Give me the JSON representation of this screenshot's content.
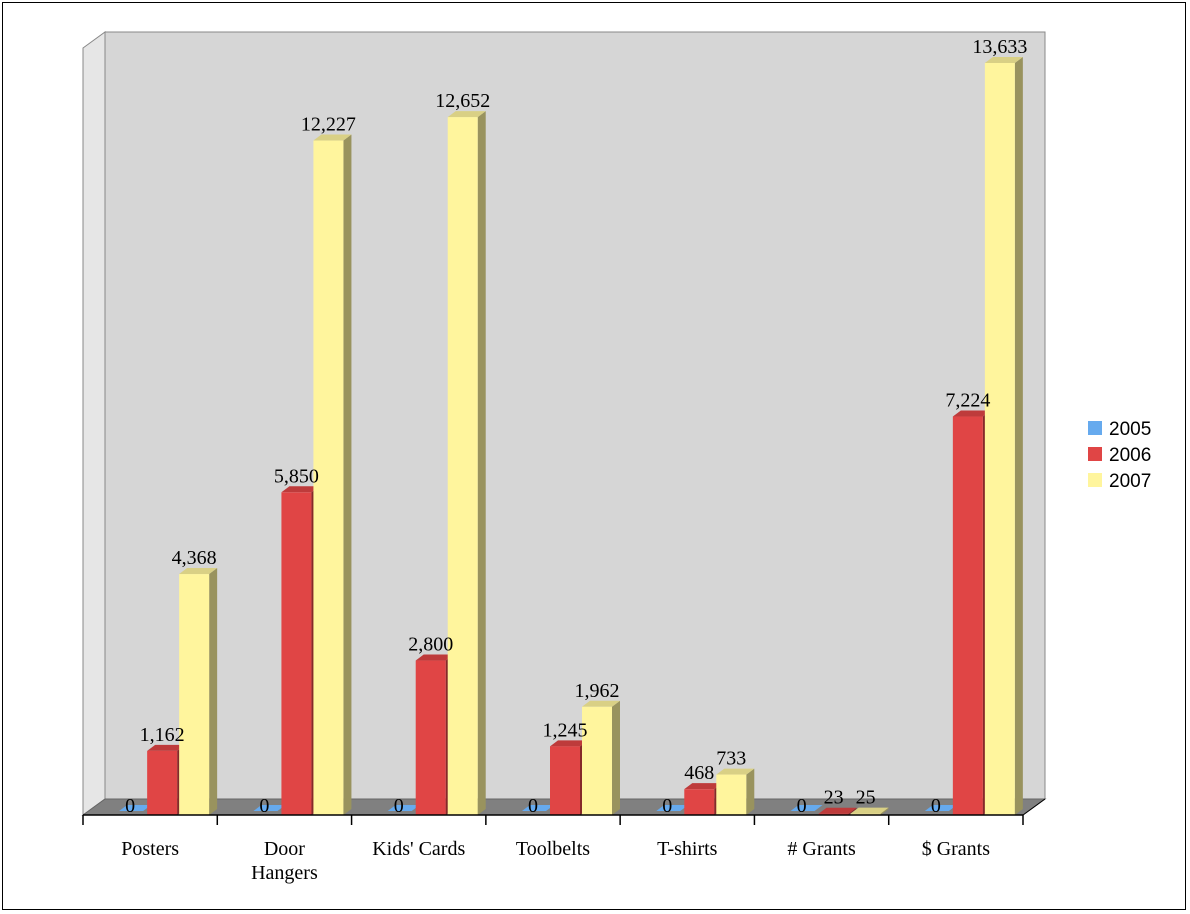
{
  "chart_data": {
    "type": "bar",
    "categories": [
      "Posters",
      "Door\nHangers",
      "Kids' Cards",
      "Toolbelts",
      "T-shirts",
      "# Grants",
      "$ Grants"
    ],
    "series": [
      {
        "name": "2005",
        "values": [
          0,
          0,
          0,
          0,
          0,
          0,
          0
        ],
        "labels": [
          "0",
          "0",
          "0",
          "0",
          "0",
          "0",
          "0"
        ]
      },
      {
        "name": "2006",
        "values": [
          1162,
          5850,
          2800,
          1245,
          468,
          23,
          7224
        ],
        "labels": [
          "1,162",
          "5,850",
          "2,800",
          "1,245",
          "468",
          "23",
          "7,224"
        ]
      },
      {
        "name": "2007",
        "values": [
          4368,
          12227,
          12652,
          1962,
          733,
          25,
          13633
        ],
        "labels": [
          "4,368",
          "12,227",
          "12,652",
          "1,962",
          "733",
          "25",
          "13,633"
        ]
      }
    ],
    "legend_position": "right",
    "grid": false
  },
  "colors": {
    "2005": "#66aaee",
    "2006": "#e04545",
    "2007": "#fff59d",
    "wall": "#d6d6d6",
    "floor": "#808080"
  }
}
